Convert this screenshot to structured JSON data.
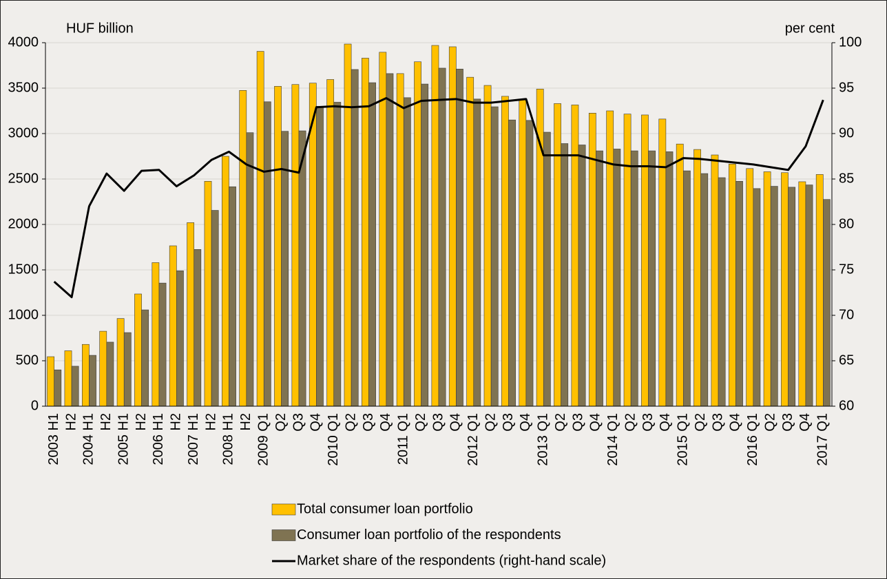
{
  "chart_data": {
    "type": "bar",
    "y_label": "HUF billion",
    "y2_label": "per cent",
    "categories": [
      "2003 H1",
      "H2",
      "2004 H1",
      "H2",
      "2005 H1",
      "H2",
      "2006 H1",
      "H2",
      "2007 H1",
      "H2",
      "2008 H1",
      "H2",
      "2009 Q1",
      "Q2",
      "Q3",
      "Q4",
      "2010 Q1",
      "Q2",
      "Q3",
      "Q4",
      "2011 Q1",
      "Q2",
      "Q3",
      "Q4",
      "2012 Q1",
      "Q2",
      "Q3",
      "Q4",
      "2013 Q1",
      "Q2",
      "Q3",
      "Q4",
      "2014 Q1",
      "Q2",
      "Q3",
      "Q4",
      "2015 Q1",
      "Q2",
      "Q3",
      "Q4",
      "2016 Q1",
      "Q2",
      "Q3",
      "Q4",
      "2017 Q1"
    ],
    "series": [
      {
        "name": "Total consumer loan portfolio",
        "type": "bar",
        "color": "#ffc000",
        "values": [
          545,
          610,
          680,
          825,
          965,
          1235,
          1580,
          1765,
          2020,
          2475,
          2750,
          3475,
          3905,
          3520,
          3540,
          3555,
          3595,
          3985,
          3830,
          3895,
          3660,
          3790,
          3970,
          3955,
          3620,
          3530,
          3410,
          3370,
          3490,
          3330,
          3315,
          3225,
          3250,
          3215,
          3205,
          3160,
          2885,
          2825,
          2765,
          2665,
          2615,
          2580,
          2570,
          2470,
          2550
        ]
      },
      {
        "name": "Consumer loan portfolio of the respondents",
        "type": "bar",
        "color": "#7f7352",
        "values": [
          400,
          440,
          560,
          705,
          810,
          1060,
          1355,
          1490,
          1725,
          2155,
          2415,
          3010,
          3350,
          3025,
          3030,
          3300,
          3345,
          3705,
          3560,
          3660,
          3395,
          3545,
          3720,
          3710,
          3380,
          3295,
          3150,
          3145,
          3015,
          2890,
          2875,
          2810,
          2830,
          2810,
          2810,
          2800,
          2590,
          2560,
          2515,
          2475,
          2395,
          2420,
          2410,
          2435,
          2275
        ]
      },
      {
        "name": "Market share of the respondents (right-hand scale)",
        "type": "line",
        "color": "#000000",
        "axis": "y2",
        "values": [
          73.7,
          72,
          82,
          85.6,
          83.7,
          85.9,
          86,
          84.2,
          85.4,
          87.1,
          88,
          86.6,
          85.8,
          86.1,
          85.7,
          92.9,
          93,
          92.9,
          93,
          93.9,
          92.8,
          93.6,
          93.7,
          93.8,
          93.4,
          93.4,
          93.6,
          93.8,
          87.6,
          87.6,
          87.6,
          87.1,
          86.6,
          86.4,
          86.4,
          86.3,
          87.3,
          87.2,
          87,
          86.8,
          86.6,
          86.3,
          86,
          88.6,
          93.7
        ]
      }
    ],
    "ylim": [
      0,
      4000
    ],
    "yticks": [
      0,
      500,
      1000,
      1500,
      2000,
      2500,
      3000,
      3500,
      4000
    ],
    "y2lim": [
      60,
      100
    ],
    "y2ticks": [
      60,
      65,
      70,
      75,
      80,
      85,
      90,
      95,
      100
    ],
    "grid": true
  }
}
